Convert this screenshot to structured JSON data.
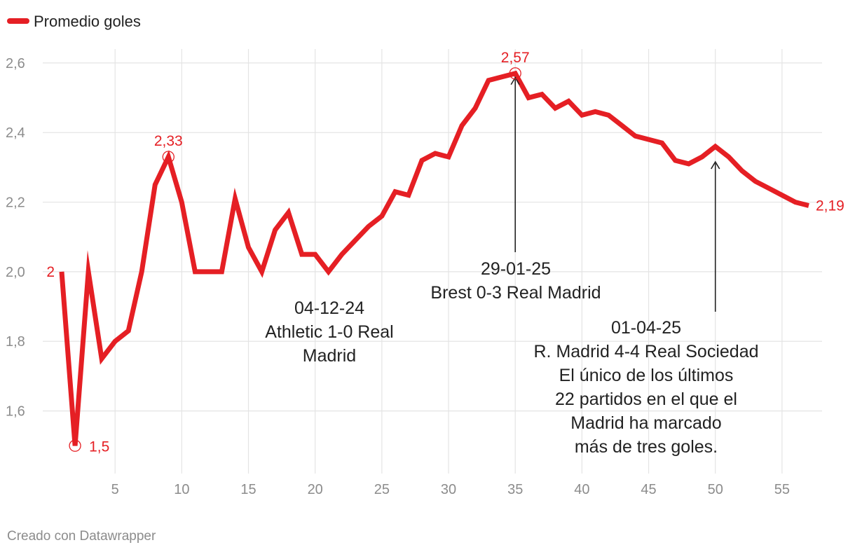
{
  "chart_data": {
    "type": "line",
    "legend": {
      "label": "Promedio goles",
      "placement": "top-left"
    },
    "series": [
      {
        "name": "Promedio goles",
        "color": "#e51f24",
        "x": [
          1,
          2,
          3,
          4,
          5,
          6,
          7,
          8,
          9,
          10,
          11,
          12,
          13,
          14,
          15,
          16,
          17,
          18,
          19,
          20,
          21,
          22,
          23,
          24,
          25,
          26,
          27,
          28,
          29,
          30,
          31,
          32,
          33,
          34,
          35,
          36,
          37,
          38,
          39,
          40,
          41,
          42,
          43,
          44,
          45,
          46,
          47,
          48,
          49,
          50,
          51,
          52,
          53,
          54,
          55,
          56,
          57
        ],
        "values": [
          2.0,
          1.5,
          2.0,
          1.75,
          1.8,
          1.83,
          2.0,
          2.25,
          2.33,
          2.2,
          2.0,
          2.0,
          2.0,
          2.21,
          2.07,
          2.0,
          2.12,
          2.17,
          2.05,
          2.05,
          2.0,
          2.05,
          2.09,
          2.13,
          2.16,
          2.23,
          2.22,
          2.32,
          2.34,
          2.33,
          2.42,
          2.47,
          2.55,
          2.56,
          2.57,
          2.5,
          2.51,
          2.47,
          2.49,
          2.45,
          2.46,
          2.45,
          2.42,
          2.39,
          2.38,
          2.37,
          2.32,
          2.31,
          2.33,
          2.36,
          2.33,
          2.29,
          2.26,
          2.24,
          2.22,
          2.2,
          2.19
        ]
      }
    ],
    "xlim": [
      0,
      58
    ],
    "ylim": [
      1.42,
      2.64
    ],
    "x_ticks": [
      5,
      10,
      15,
      20,
      25,
      30,
      35,
      40,
      45,
      50,
      55
    ],
    "x_tick_labels": [
      "5",
      "10",
      "15",
      "20",
      "25",
      "30",
      "35",
      "40",
      "45",
      "50",
      "55"
    ],
    "y_ticks": [
      1.6,
      1.8,
      2.0,
      2.2,
      2.4,
      2.6
    ],
    "y_tick_labels": [
      "1,6",
      "1,8",
      "2,0",
      "2,2",
      "2,4",
      "2,6"
    ],
    "grid": true,
    "point_labels": [
      {
        "x": 1,
        "y": 2.0,
        "text": "2",
        "circle": false
      },
      {
        "x": 2,
        "y": 1.5,
        "text": "1,5",
        "circle": true
      },
      {
        "x": 9,
        "y": 2.33,
        "text": "2,33",
        "circle": true
      },
      {
        "x": 35,
        "y": 2.57,
        "text": "2,57",
        "circle": true
      },
      {
        "x": 57,
        "y": 2.19,
        "text": "2,19",
        "circle": false
      }
    ],
    "annotations": [
      {
        "name": "athletic",
        "x": 21,
        "y": 2.0,
        "arrow": false,
        "lines": [
          "04-12-24",
          "Athletic 1-0 Real",
          "Madrid"
        ]
      },
      {
        "name": "brest",
        "x": 35,
        "y": 2.57,
        "arrow": true,
        "lines": [
          "29-01-25",
          "Brest 0-3 Real Madrid"
        ]
      },
      {
        "name": "real-sociedad",
        "x": 50,
        "y": 2.36,
        "arrow": true,
        "lines": [
          "01-04-25",
          "R. Madrid 4-4 Real Sociedad",
          "El único de los últimos",
          "22 partidos en el que el",
          "Madrid ha marcado",
          "más de tres goles."
        ]
      }
    ],
    "credit": "Creado con Datawrapper"
  }
}
